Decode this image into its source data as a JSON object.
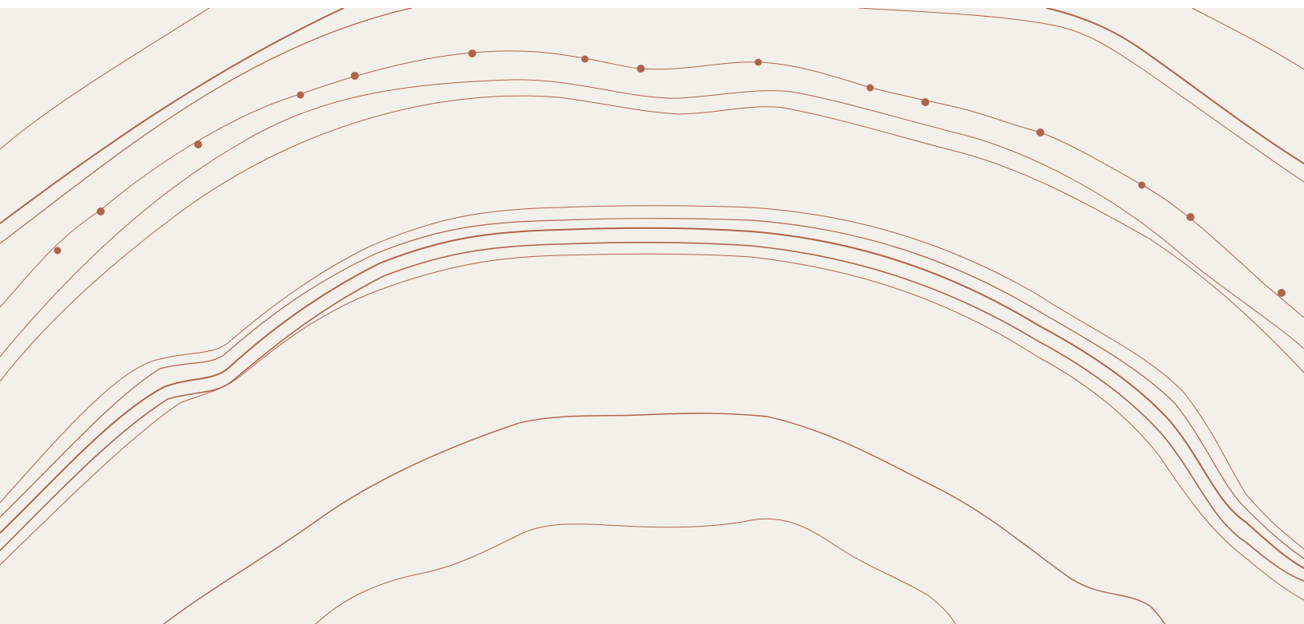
{
  "theme": {
    "background": "#f3f0ea",
    "stroke": "#b0634b",
    "frame": "#ffffff"
  },
  "artwork": {
    "subject": "topographic-contour-lines",
    "icon": "contour-pattern"
  }
}
